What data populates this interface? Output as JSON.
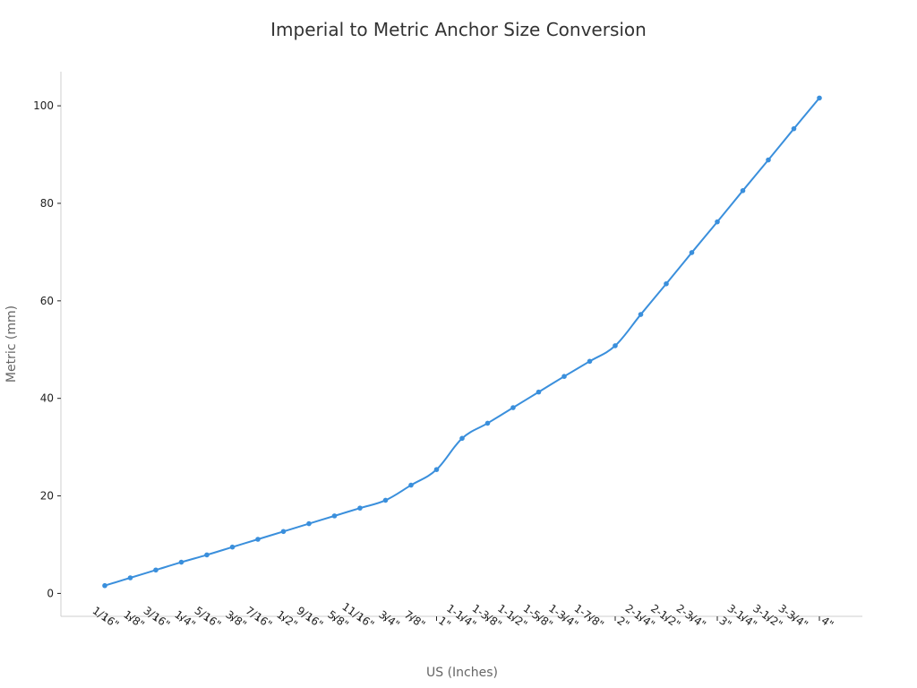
{
  "chart_data": {
    "type": "line",
    "title": "Imperial to Metric Anchor Size Conversion",
    "xlabel": "US (Inches)",
    "ylabel": "Metric (mm)",
    "categories": [
      "1/16\"",
      "1/8\"",
      "3/16\"",
      "1/4\"",
      "5/16\"",
      "3/8\"",
      "7/16\"",
      "1/2\"",
      "9/16\"",
      "5/8\"",
      "11/16\"",
      "3/4\"",
      "7/8\"",
      "1\"",
      "1-1/4\"",
      "1-3/8\"",
      "1-1/2\"",
      "1-5/8\"",
      "1-3/4\"",
      "1-7/8\"",
      "2\"",
      "2-1/4\"",
      "2-1/2\"",
      "2-3/4\"",
      "3\"",
      "3-1/4\"",
      "3-1/2\"",
      "3-3/4\"",
      "4\""
    ],
    "values": [
      1.6,
      3.2,
      4.8,
      6.4,
      7.9,
      9.5,
      11.1,
      12.7,
      14.3,
      15.9,
      17.5,
      19.1,
      22.2,
      25.4,
      31.8,
      34.9,
      38.1,
      41.3,
      44.5,
      47.6,
      50.8,
      57.2,
      63.5,
      69.9,
      76.2,
      82.6,
      88.9,
      95.3,
      101.6
    ],
    "ylim": [
      -4.7,
      107
    ],
    "yticks": [
      0,
      20,
      40,
      60,
      80,
      100
    ],
    "grid": false,
    "colors": {
      "series": "#3a8fdc"
    }
  }
}
